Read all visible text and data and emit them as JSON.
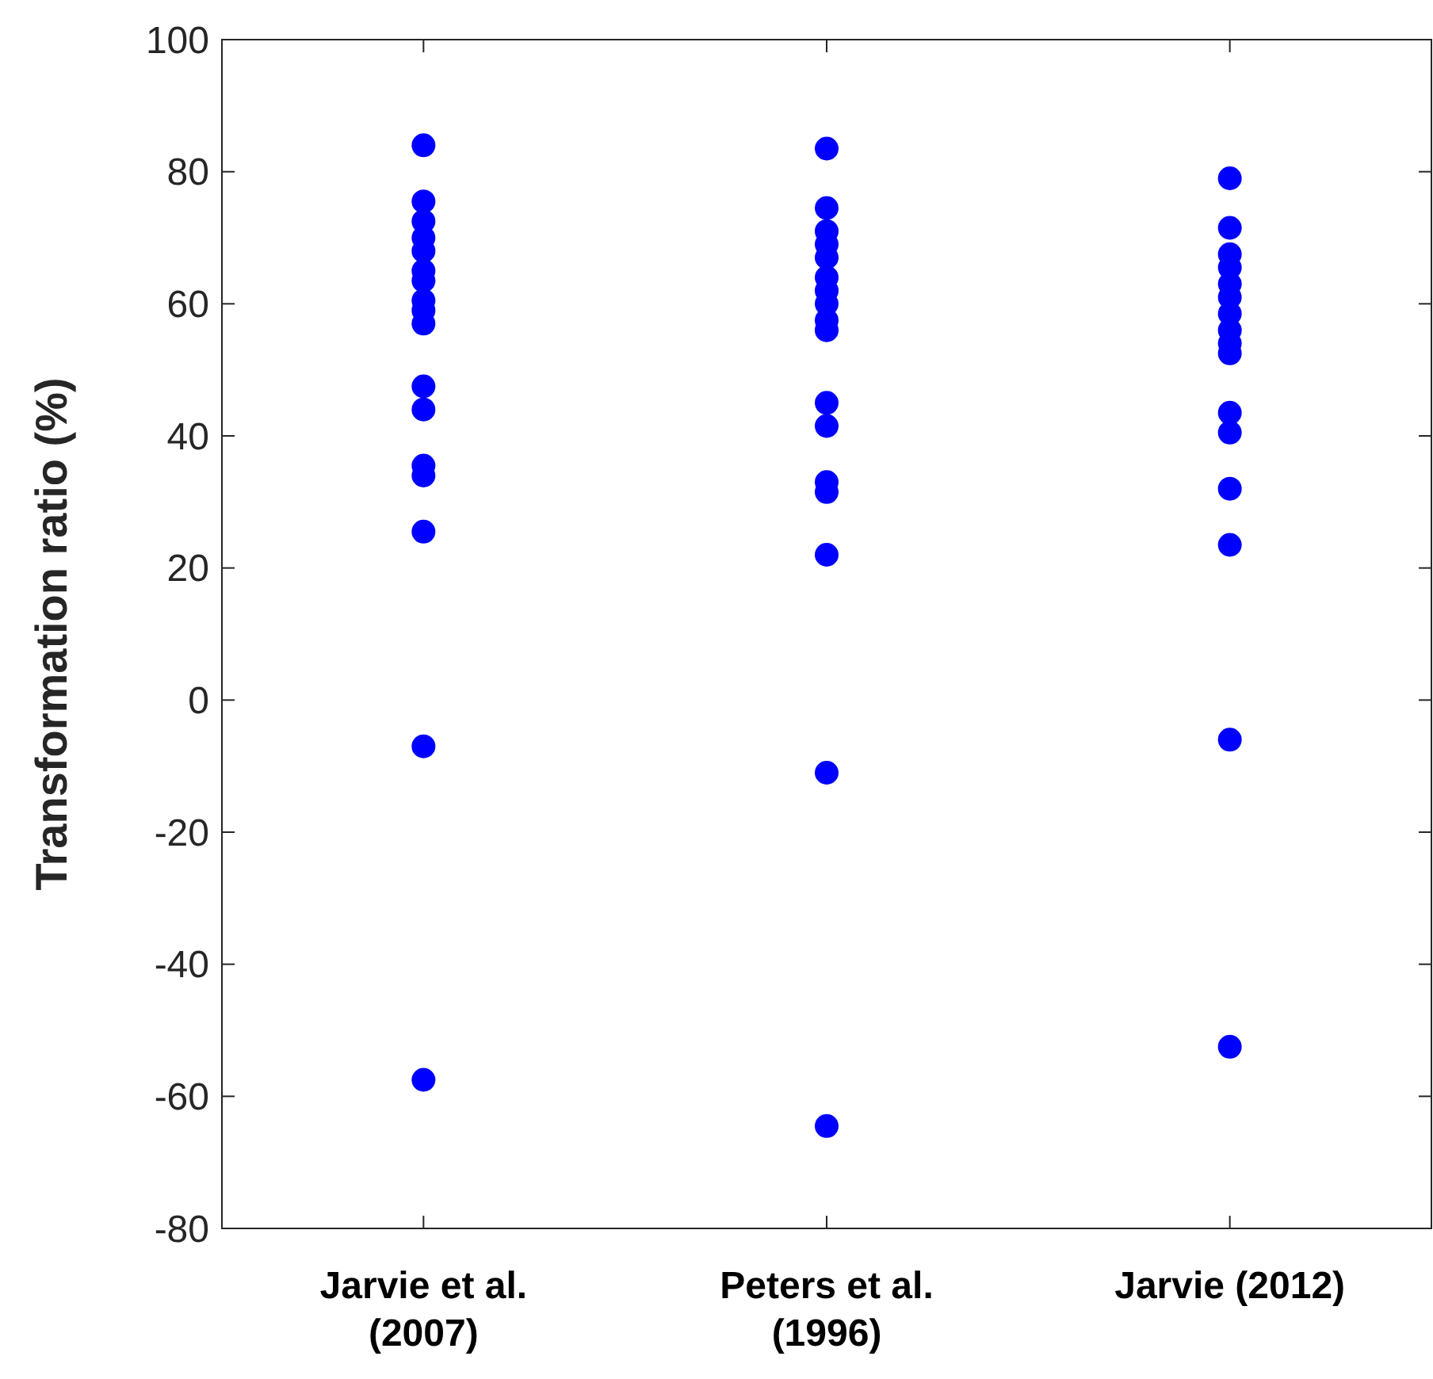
{
  "chart_data": {
    "type": "scatter",
    "ylabel": "Transformation ratio (%)",
    "categories": [
      "Jarvie et al. (2007)",
      "Peters et al. (1996)",
      "Jarvie (2012)"
    ],
    "ylim": [
      -80,
      100
    ],
    "yticks": [
      -80,
      -60,
      -40,
      -20,
      0,
      20,
      40,
      60,
      80,
      100
    ],
    "grid": false,
    "marker": "circle",
    "series": [
      {
        "color": "#0000ff",
        "x": [
          "Jarvie et al. (2007)",
          "Jarvie et al. (2007)",
          "Jarvie et al. (2007)",
          "Jarvie et al. (2007)",
          "Jarvie et al. (2007)",
          "Jarvie et al. (2007)",
          "Jarvie et al. (2007)",
          "Jarvie et al. (2007)",
          "Jarvie et al. (2007)",
          "Jarvie et al. (2007)",
          "Jarvie et al. (2007)",
          "Jarvie et al. (2007)",
          "Jarvie et al. (2007)",
          "Jarvie et al. (2007)",
          "Jarvie et al. (2007)",
          "Jarvie et al. (2007)",
          "Jarvie et al. (2007)",
          "Peters et al. (1996)",
          "Peters et al. (1996)",
          "Peters et al. (1996)",
          "Peters et al. (1996)",
          "Peters et al. (1996)",
          "Peters et al. (1996)",
          "Peters et al. (1996)",
          "Peters et al. (1996)",
          "Peters et al. (1996)",
          "Peters et al. (1996)",
          "Peters et al. (1996)",
          "Peters et al. (1996)",
          "Peters et al. (1996)",
          "Peters et al. (1996)",
          "Peters et al. (1996)",
          "Peters et al. (1996)",
          "Peters et al. (1996)",
          "Jarvie (2012)",
          "Jarvie (2012)",
          "Jarvie (2012)",
          "Jarvie (2012)",
          "Jarvie (2012)",
          "Jarvie (2012)",
          "Jarvie (2012)",
          "Jarvie (2012)",
          "Jarvie (2012)",
          "Jarvie (2012)",
          "Jarvie (2012)",
          "Jarvie (2012)",
          "Jarvie (2012)",
          "Jarvie (2012)",
          "Jarvie (2012)",
          "Jarvie (2012)"
        ],
        "values": [
          84,
          75.5,
          72.5,
          70,
          68,
          65,
          63.5,
          60.5,
          59,
          57,
          47.5,
          44,
          35.5,
          34,
          25.5,
          -7,
          -57.5,
          83.5,
          74.5,
          71,
          69,
          67,
          64,
          62,
          60,
          57.5,
          56,
          45,
          41.5,
          33,
          31.5,
          22,
          -11,
          -64.5,
          79,
          71.5,
          67.5,
          65.5,
          63,
          61,
          58.5,
          56,
          54,
          52.5,
          43.5,
          40.5,
          32,
          23.5,
          -6,
          -52.5
        ]
      }
    ]
  }
}
